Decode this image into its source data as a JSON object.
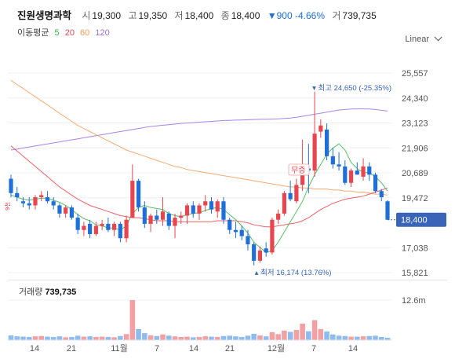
{
  "header": {
    "name": "진원생명과학",
    "open_label": "시",
    "open": "19,300",
    "high_label": "고",
    "high": "19,350",
    "low_label": "저",
    "low": "18,400",
    "close_label": "종",
    "close": "18,400",
    "change": "▼900 -4.66%",
    "volume_label": "거",
    "volume": "739,735"
  },
  "ma_legend": {
    "title": "이동평균",
    "periods": [
      "5",
      "20",
      "60",
      "120"
    ]
  },
  "scale_selector": {
    "label": "Linear"
  },
  "colors": {
    "up": "#e8464f",
    "down": "#1e6fd9",
    "ma5": "#3cb44b",
    "ma20": "#e8464f",
    "ma60": "#f39c5a",
    "ma120": "#9b6fe0",
    "price_tag": "#3a64b8"
  },
  "chart_data": [
    {
      "type": "candlestick",
      "y_ticks": [
        "25,557",
        "24,340",
        "23,123",
        "21,906",
        "20,689",
        "19,472",
        "17,038",
        "15,821"
      ],
      "ylim": [
        15821,
        25800
      ],
      "current_price_label": "18,400",
      "max_annotation": "최고 24,650 (-25.35%)",
      "min_annotation": "최저 16,174 (13.76%)",
      "event_label": "무증",
      "side_label": "9천",
      "x_tick_labels": [
        "14",
        "21",
        "11월",
        "7",
        "14",
        "21",
        "12월",
        "7",
        "14"
      ],
      "candles": [
        [
          20400,
          20600,
          19500,
          19700
        ],
        [
          19700,
          20000,
          19300,
          19500
        ],
        [
          19300,
          19500,
          19000,
          19200
        ],
        [
          19200,
          19500,
          18900,
          19100
        ],
        [
          19100,
          19600,
          18900,
          19500
        ],
        [
          19500,
          19800,
          19300,
          19600
        ],
        [
          19500,
          19800,
          19200,
          19300
        ],
        [
          19300,
          19500,
          18900,
          19100
        ],
        [
          19100,
          19200,
          18500,
          18700
        ],
        [
          18700,
          19100,
          18500,
          19000
        ],
        [
          19000,
          19100,
          18400,
          18500
        ],
        [
          18500,
          18700,
          17700,
          17900
        ],
        [
          17900,
          18300,
          17600,
          18100
        ],
        [
          18200,
          18400,
          17500,
          17700
        ],
        [
          17700,
          18300,
          17600,
          18100
        ],
        [
          18100,
          18400,
          17900,
          18200
        ],
        [
          18200,
          18500,
          17800,
          17900
        ],
        [
          17900,
          18300,
          17600,
          18200
        ],
        [
          18200,
          18300,
          17300,
          17500
        ],
        [
          17500,
          18600,
          17300,
          18400
        ],
        [
          18500,
          21100,
          18500,
          20300
        ],
        [
          20300,
          20400,
          18800,
          19000
        ],
        [
          19000,
          19300,
          18000,
          18200
        ],
        [
          18200,
          18700,
          17800,
          18600
        ],
        [
          18600,
          18900,
          18200,
          18400
        ],
        [
          18400,
          19500,
          18100,
          18800
        ],
        [
          18700,
          18800,
          17900,
          18100
        ],
        [
          18100,
          18700,
          17500,
          18500
        ],
        [
          18500,
          18800,
          18200,
          18600
        ],
        [
          18600,
          19200,
          18200,
          19100
        ],
        [
          19100,
          19300,
          18500,
          18700
        ],
        [
          18700,
          19200,
          18400,
          19100
        ],
        [
          19100,
          19600,
          18800,
          19300
        ],
        [
          19300,
          19500,
          18700,
          18900
        ],
        [
          18800,
          19400,
          18500,
          19300
        ],
        [
          19300,
          19500,
          18200,
          18400
        ],
        [
          18400,
          18500,
          17700,
          17900
        ],
        [
          17900,
          18300,
          17500,
          17800
        ],
        [
          17900,
          18100,
          17400,
          17600
        ],
        [
          17600,
          17900,
          16900,
          17200
        ],
        [
          17200,
          17300,
          16174,
          16400
        ],
        [
          16400,
          17100,
          16300,
          16900
        ],
        [
          17000,
          17300,
          16600,
          16800
        ],
        [
          16800,
          18500,
          16700,
          18400
        ],
        [
          18400,
          18900,
          18200,
          18700
        ],
        [
          18700,
          19800,
          18600,
          19700
        ],
        [
          19700,
          20300,
          19300,
          19400
        ],
        [
          19300,
          20400,
          19200,
          20100
        ],
        [
          20100,
          22300,
          19800,
          21100
        ],
        [
          20900,
          22100,
          19700,
          20800
        ],
        [
          20800,
          24650,
          20500,
          22600
        ],
        [
          22700,
          23300,
          22400,
          23000
        ],
        [
          22800,
          23100,
          21300,
          21500
        ],
        [
          21500,
          21900,
          20900,
          21100
        ],
        [
          21100,
          21700,
          20800,
          21000
        ],
        [
          21000,
          21300,
          20100,
          20200
        ],
        [
          20200,
          20900,
          20000,
          20800
        ],
        [
          20800,
          21200,
          20600,
          20600
        ],
        [
          20500,
          21400,
          20300,
          21000
        ],
        [
          21000,
          21200,
          20300,
          20600
        ],
        [
          20600,
          20700,
          19700,
          19800
        ],
        [
          19800,
          19900,
          19300,
          19500
        ],
        [
          19300,
          19350,
          18400,
          18400
        ]
      ],
      "ma5": [
        19600,
        19500,
        19400,
        19350,
        19400,
        19450,
        19450,
        19350,
        19250,
        19100,
        18900,
        18650,
        18450,
        18350,
        18150,
        18100,
        18000,
        18000,
        17900,
        18100,
        18700,
        19000,
        19100,
        19000,
        18950,
        18900,
        18700,
        18600,
        18550,
        18650,
        18700,
        18750,
        18850,
        18950,
        19000,
        18900,
        18650,
        18400,
        18100,
        17750,
        17300,
        17050,
        16800,
        16900,
        17300,
        17800,
        18300,
        18800,
        19300,
        20000,
        20600,
        21100,
        21600,
        21900,
        22100,
        21800,
        21200,
        20900,
        20700,
        20700,
        20500,
        20200,
        19800
      ],
      "ma20": [
        22000,
        21750,
        21500,
        21250,
        21000,
        20750,
        20500,
        20250,
        20000,
        19800,
        19600,
        19400,
        19250,
        19100,
        19000,
        18900,
        18800,
        18700,
        18600,
        18550,
        18500,
        18500,
        18450,
        18400,
        18350,
        18350,
        18350,
        18300,
        18300,
        18300,
        18300,
        18300,
        18300,
        18300,
        18350,
        18350,
        18350,
        18350,
        18300,
        18250,
        18150,
        18100,
        18050,
        18050,
        18100,
        18150,
        18200,
        18250,
        18350,
        18500,
        18700,
        18900,
        19050,
        19200,
        19300,
        19400,
        19450,
        19500,
        19550,
        19650,
        19750,
        19850,
        19950
      ],
      "ma60": [
        25200,
        25000,
        24800,
        24600,
        24400,
        24200,
        24000,
        23800,
        23600,
        23400,
        23200,
        23000,
        22850,
        22700,
        22550,
        22400,
        22250,
        22100,
        21950,
        21800,
        21700,
        21600,
        21500,
        21400,
        21300,
        21200,
        21100,
        21000,
        20950,
        20850,
        20800,
        20750,
        20700,
        20650,
        20600,
        20550,
        20500,
        20450,
        20400,
        20350,
        20300,
        20250,
        20200,
        20150,
        20100,
        20050,
        20000,
        20000,
        19950,
        19950,
        19900,
        19900,
        19900,
        19850,
        19850,
        19800,
        19800,
        19750,
        19750,
        19700,
        19650,
        19650,
        19600
      ],
      "ma120": [
        21800,
        21850,
        21900,
        21950,
        22000,
        22050,
        22100,
        22150,
        22200,
        22250,
        22300,
        22350,
        22400,
        22450,
        22500,
        22550,
        22600,
        22650,
        22700,
        22750,
        22800,
        22850,
        22900,
        22950,
        22980,
        23010,
        23040,
        23070,
        23100,
        23120,
        23140,
        23160,
        23180,
        23200,
        23220,
        23240,
        23250,
        23260,
        23270,
        23280,
        23290,
        23300,
        23300,
        23310,
        23320,
        23340,
        23360,
        23400,
        23450,
        23500,
        23550,
        23600,
        23650,
        23700,
        23750,
        23780,
        23800,
        23810,
        23810,
        23800,
        23780,
        23740,
        23700
      ],
      "volume_title": "거래량",
      "volume_value": "739,735",
      "volume_tick": "12.6m",
      "volume_max": 12600000,
      "volumes": [
        1500000,
        1200000,
        1100000,
        1000000,
        1200000,
        1300000,
        1100000,
        1000000,
        1200000,
        900000,
        1000000,
        1400000,
        1100000,
        1200000,
        1000000,
        1100000,
        1000000,
        900000,
        1300000,
        1900000,
        12600000,
        3500000,
        2200000,
        1500000,
        1300000,
        1800000,
        1400000,
        1200000,
        1000000,
        1100000,
        900000,
        1000000,
        1200000,
        1100000,
        1000000,
        1300000,
        1400000,
        1200000,
        1000000,
        1400000,
        2000000,
        1500000,
        1200000,
        2500000,
        1900000,
        3000000,
        2600000,
        3200000,
        5200000,
        2800000,
        6300000,
        3500000,
        2700000,
        1800000,
        1400000,
        1300000,
        1100000,
        1100000,
        1200000,
        1300000,
        1400000,
        1000000,
        739735
      ]
    }
  ]
}
